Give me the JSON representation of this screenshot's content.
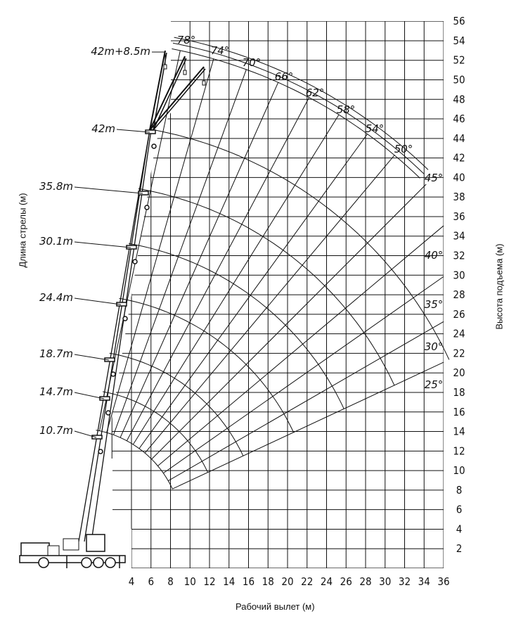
{
  "chart_data": {
    "type": "diagram",
    "xlabel": "Рабочий вылет (м)",
    "ylabel_left": "Длина стрелы (м)",
    "ylabel_right": "Высота подъема (м)",
    "x_ticks": [
      4,
      6,
      8,
      10,
      12,
      14,
      16,
      18,
      20,
      22,
      24,
      26,
      28,
      30,
      32,
      34,
      36
    ],
    "y_ticks": [
      2,
      4,
      6,
      8,
      10,
      12,
      14,
      16,
      18,
      20,
      22,
      24,
      26,
      28,
      30,
      32,
      34,
      36,
      38,
      40,
      42,
      44,
      46,
      48,
      50,
      52,
      54,
      56
    ],
    "xlim": [
      0,
      36
    ],
    "ylim": [
      0,
      56
    ],
    "grid": true,
    "boom_lengths": [
      {
        "label": "10.7m",
        "value": 10.7
      },
      {
        "label": "14.7m",
        "value": 14.7
      },
      {
        "label": "18.7m",
        "value": 18.7
      },
      {
        "label": "24.4m",
        "value": 24.4
      },
      {
        "label": "30.1m",
        "value": 30.1
      },
      {
        "label": "35.8m",
        "value": 35.8
      },
      {
        "label": "42m",
        "value": 42
      },
      {
        "label": "42m+8.5m",
        "value": 50.5
      }
    ],
    "boom_angles": [
      {
        "label": "78°",
        "value": 78
      },
      {
        "label": "74°",
        "value": 74
      },
      {
        "label": "70°",
        "value": 70
      },
      {
        "label": "66°",
        "value": 66
      },
      {
        "label": "62°",
        "value": 62
      },
      {
        "label": "58°",
        "value": 58
      },
      {
        "label": "54°",
        "value": 54
      },
      {
        "label": "50°",
        "value": 50
      },
      {
        "label": "45°",
        "value": 45
      },
      {
        "label": "40°",
        "value": 40
      },
      {
        "label": "35°",
        "value": 35
      },
      {
        "label": "30°",
        "value": 30
      },
      {
        "label": "25°",
        "value": 25
      }
    ],
    "line_color": "#111111"
  }
}
